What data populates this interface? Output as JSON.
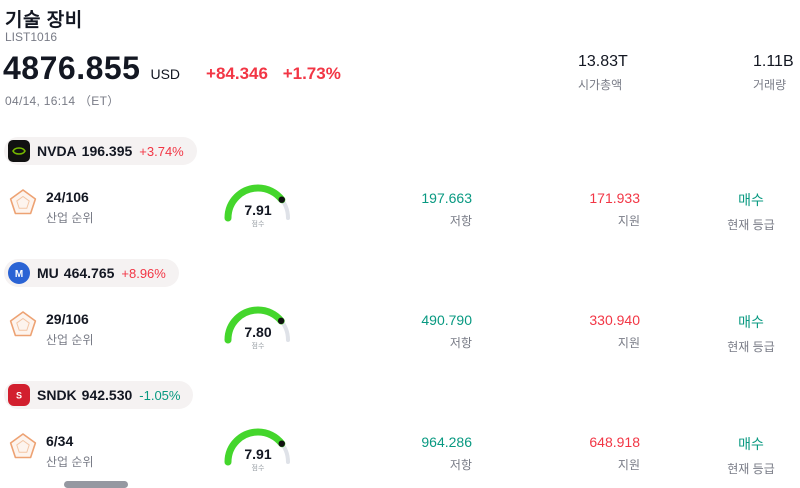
{
  "header": {
    "title": "기술 장비",
    "list_id": "LIST1016",
    "price": "4876.855",
    "currency": "USD",
    "change": "+84.346",
    "change_pct": "+1.73%",
    "datetime": "04/14, 16:14 （ET）",
    "market_cap_value": "13.83T",
    "market_cap_label": "시가총액",
    "volume_value": "1.11B",
    "volume_label": "거래량"
  },
  "labels": {
    "industry_rank": "산업 순위",
    "resistance": "저항",
    "support": "지원",
    "current_rating": "현재 등급",
    "score": "점수"
  },
  "colors": {
    "up": "#f23645",
    "down": "#089981",
    "gauge_green": "#44d62c",
    "pill_bg": "#f5f2f2",
    "muted_text": "#787b86"
  },
  "stocks": [
    {
      "ticker": "NVDA",
      "price": "196.395",
      "change_pct": "+3.74%",
      "dir": "up",
      "rank": "24/106",
      "score": 7.91,
      "score_text": "7.91",
      "resistance": "197.663",
      "support": "171.933",
      "rating": "매수"
    },
    {
      "ticker": "MU",
      "price": "464.765",
      "change_pct": "+8.96%",
      "dir": "up",
      "rank": "29/106",
      "score": 7.8,
      "score_text": "7.80",
      "resistance": "490.790",
      "support": "330.940",
      "rating": "매수"
    },
    {
      "ticker": "SNDK",
      "price": "942.530",
      "change_pct": "-1.05%",
      "dir": "down",
      "rank": "6/34",
      "score": 7.91,
      "score_text": "7.91",
      "resistance": "964.286",
      "support": "648.918",
      "rating": "매수"
    }
  ]
}
